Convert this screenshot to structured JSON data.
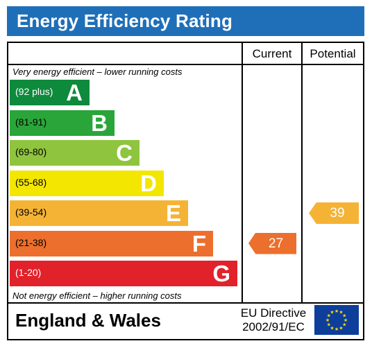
{
  "title": "Energy Efficiency Rating",
  "columns": {
    "current": "Current",
    "potential": "Potential"
  },
  "top_note": "Very energy efficient – lower running costs",
  "bottom_note": "Not energy efficient – higher running costs",
  "bands": [
    {
      "range": "(92 plus)",
      "letter": "A",
      "color": "#0e8a3c"
    },
    {
      "range": "(81-91)",
      "letter": "B",
      "color": "#2aa53a"
    },
    {
      "range": "(69-80)",
      "letter": "C",
      "color": "#8fc43e"
    },
    {
      "range": "(55-68)",
      "letter": "D",
      "color": "#f3e600"
    },
    {
      "range": "(39-54)",
      "letter": "E",
      "color": "#f5b335"
    },
    {
      "range": "(21-38)",
      "letter": "F",
      "color": "#ec6f2d"
    },
    {
      "range": "(1-20)",
      "letter": "G",
      "color": "#e2222a"
    }
  ],
  "current_rating": {
    "value": "27",
    "band": "F",
    "color": "#ec6f2d"
  },
  "potential_rating": {
    "value": "39",
    "band": "E",
    "color": "#f5b335"
  },
  "footer": {
    "region": "England & Wales",
    "directive_line1": "EU Directive",
    "directive_line2": "2002/91/EC"
  },
  "icons": {
    "flag": "eu-flag-icon"
  }
}
